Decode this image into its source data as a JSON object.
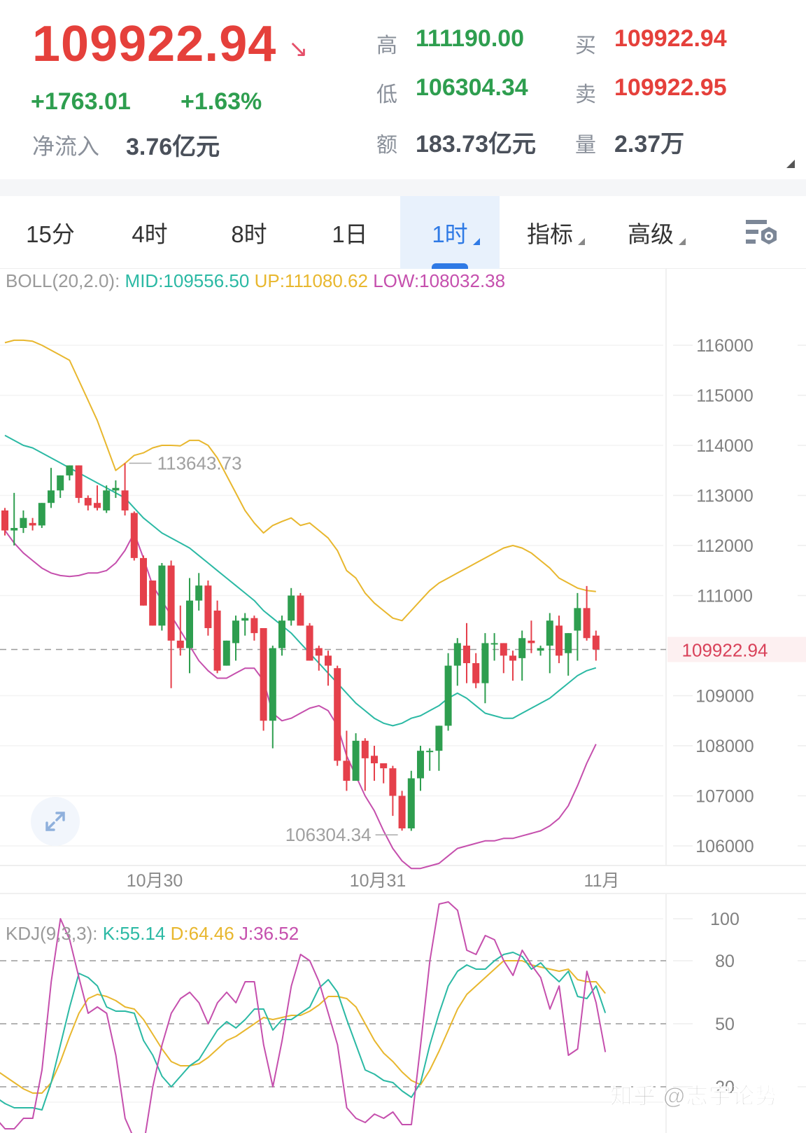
{
  "quote": {
    "last_price": "109922.94",
    "direction_icon": "arrow-down-right",
    "change_abs": "+1763.01",
    "change_pct": "+1.63%",
    "net_inflow_label": "净流入",
    "net_inflow_value": "3.76亿元"
  },
  "stats": {
    "high_label": "高",
    "high_value": "111190.00",
    "low_label": "低",
    "low_value": "106304.34",
    "amount_label": "额",
    "amount_value": "183.73亿元",
    "bid_label": "买",
    "bid_value": "109922.94",
    "ask_label": "卖",
    "ask_value": "109922.95",
    "volume_label": "量",
    "volume_value": "2.37万"
  },
  "tabs": [
    {
      "label": "15分",
      "active": false
    },
    {
      "label": "4时",
      "active": false
    },
    {
      "label": "8时",
      "active": false
    },
    {
      "label": "1日",
      "active": false
    },
    {
      "label": "1时",
      "active": true,
      "dropdown": true
    },
    {
      "label": "指标",
      "active": false,
      "dropdown": true
    },
    {
      "label": "高级",
      "active": false,
      "dropdown": true
    }
  ],
  "settings_icon": "chart-settings-icon",
  "boll_legend": {
    "name": "BOLL(20,2.0):",
    "mid": "MID:109556.50",
    "up": "UP:111080.62",
    "low": "LOW:108032.38"
  },
  "kdj_legend": {
    "name": "KDJ(9,3,3):",
    "k": "K:55.14",
    "d": "D:64.46",
    "j": "J:36.52"
  },
  "watermark": "知乎 @志宇论势",
  "colors": {
    "up": "#2e9e4f",
    "down": "#e5404b",
    "mid": "#2bb9a4",
    "upper": "#e8b72e",
    "lower": "#c54fad",
    "price_line": "#d9425a"
  },
  "chart_data": [
    {
      "type": "candlestick",
      "title": "BTC 1H K-line with BOLL(20,2.0)",
      "interval": "1时",
      "xlabel": "",
      "ylabel": "",
      "ylim": [
        105600,
        117300
      ],
      "y_ticks": [
        116000,
        115000,
        114000,
        113000,
        112000,
        111000,
        109000,
        108000,
        107000,
        106000
      ],
      "x_tick_labels": [
        {
          "label": "10月30",
          "index": 16
        },
        {
          "label": "10月31",
          "index": 40
        },
        {
          "label": "11月",
          "index": 65
        }
      ],
      "current_price_label": "109922.94",
      "annotations": [
        {
          "text": "113643.73",
          "type": "max",
          "index": 13
        },
        {
          "text": "106304.34",
          "type": "min",
          "index": 43
        }
      ],
      "candles": [
        [
          112700,
          112750,
          112200,
          112300
        ],
        [
          112300,
          113050,
          112000,
          112350
        ],
        [
          112350,
          112700,
          112250,
          112550
        ],
        [
          112450,
          112550,
          112300,
          112400
        ],
        [
          112400,
          112850,
          112350,
          112850
        ],
        [
          112850,
          113550,
          112750,
          113100
        ],
        [
          113100,
          113400,
          112950,
          113400
        ],
        [
          113400,
          113600,
          113300,
          113600
        ],
        [
          113600,
          113600,
          112850,
          112950
        ],
        [
          112950,
          113000,
          112700,
          112800
        ],
        [
          112850,
          113200,
          112700,
          112750
        ],
        [
          112700,
          113200,
          112650,
          113100
        ],
        [
          113100,
          113300,
          112950,
          113150
        ],
        [
          113100,
          113643.73,
          112600,
          112700
        ],
        [
          112650,
          112680,
          111700,
          111750
        ],
        [
          111750,
          111800,
          110800,
          110800
        ],
        [
          111300,
          111300,
          110400,
          110400
        ],
        [
          110400,
          111650,
          110300,
          111600
        ],
        [
          111600,
          111700,
          109150,
          110100
        ],
        [
          110100,
          110800,
          109800,
          109950
        ],
        [
          109950,
          111350,
          109450,
          110900
        ],
        [
          110900,
          111450,
          110700,
          111200
        ],
        [
          111200,
          111300,
          110200,
          110350
        ],
        [
          110700,
          110900,
          109450,
          109500
        ],
        [
          109600,
          110100,
          109600,
          110100
        ],
        [
          110050,
          110600,
          109700,
          110500
        ],
        [
          110500,
          110650,
          110200,
          110550
        ],
        [
          110550,
          110600,
          110100,
          110250
        ],
        [
          110350,
          110350,
          108300,
          108500
        ],
        [
          108500,
          110000,
          107950,
          109950
        ],
        [
          109950,
          110600,
          109800,
          110500
        ],
        [
          110500,
          111150,
          110400,
          111000
        ],
        [
          111000,
          111050,
          110400,
          110400
        ],
        [
          110400,
          110450,
          109700,
          109700
        ],
        [
          109950,
          110000,
          109500,
          109800
        ],
        [
          109800,
          109900,
          109200,
          109600
        ],
        [
          109550,
          109600,
          107600,
          107700
        ],
        [
          107700,
          108300,
          107100,
          107300
        ],
        [
          107300,
          108250,
          107300,
          108100
        ],
        [
          108100,
          108150,
          107100,
          107750
        ],
        [
          107800,
          108000,
          107300,
          107650
        ],
        [
          107650,
          107550,
          107250,
          107550
        ],
        [
          107550,
          107600,
          106600,
          107000
        ],
        [
          107000,
          107100,
          106304.34,
          106350
        ],
        [
          106350,
          107500,
          106300,
          107350
        ],
        [
          107350,
          108000,
          107100,
          107900
        ],
        [
          107900,
          107950,
          107500,
          107900
        ],
        [
          107900,
          108400,
          107500,
          108400
        ],
        [
          108400,
          109850,
          108300,
          109600
        ],
        [
          109600,
          110150,
          109200,
          110050
        ],
        [
          110000,
          110450,
          109250,
          109650
        ],
        [
          109650,
          109850,
          109150,
          109250
        ],
        [
          109250,
          110250,
          108850,
          110050
        ],
        [
          110050,
          110250,
          109700,
          110050
        ],
        [
          110050,
          110050,
          109450,
          109800
        ],
        [
          109800,
          109900,
          109300,
          109700
        ],
        [
          109750,
          110300,
          109300,
          110150
        ],
        [
          110100,
          110500,
          109850,
          110050
        ],
        [
          109900,
          110000,
          109800,
          109950
        ],
        [
          110000,
          110650,
          109450,
          110500
        ],
        [
          110400,
          110600,
          109650,
          109800
        ],
        [
          109850,
          110250,
          109400,
          110250
        ],
        [
          110300,
          111050,
          109700,
          110750
        ],
        [
          110750,
          111190,
          110100,
          110150
        ],
        [
          110200,
          110300,
          109700,
          109922.94
        ]
      ],
      "boll": {
        "upper": [
          116050,
          116100,
          116100,
          116080,
          116000,
          115900,
          115800,
          115700,
          115300,
          114900,
          114500,
          114000,
          113500,
          113640,
          113800,
          113850,
          113950,
          114000,
          114000,
          113990,
          114100,
          114100,
          114000,
          113750,
          113400,
          113050,
          112700,
          112450,
          112250,
          112400,
          112480,
          112550,
          112400,
          112450,
          112300,
          112150,
          111900,
          111500,
          111350,
          111050,
          110850,
          110700,
          110550,
          110500,
          110700,
          110900,
          111100,
          111250,
          111350,
          111450,
          111550,
          111650,
          111750,
          111850,
          111950,
          112000,
          111950,
          111850,
          111700,
          111550,
          111350,
          111250,
          111150,
          111100,
          111080.62
        ],
        "mid": [
          114200,
          114100,
          114000,
          113950,
          113850,
          113750,
          113650,
          113550,
          113450,
          113350,
          113250,
          113150,
          113050,
          112950,
          112750,
          112550,
          112400,
          112250,
          112150,
          112050,
          111950,
          111800,
          111650,
          111500,
          111350,
          111200,
          111050,
          110900,
          110700,
          110550,
          110400,
          110250,
          110050,
          109850,
          109650,
          109450,
          109250,
          109050,
          108850,
          108700,
          108550,
          108450,
          108400,
          108450,
          108550,
          108600,
          108700,
          108800,
          108950,
          109050,
          108950,
          108800,
          108650,
          108600,
          108550,
          108550,
          108650,
          108750,
          108850,
          108950,
          109100,
          109250,
          109400,
          109500,
          109556.5
        ],
        "lower": [
          112300,
          112050,
          111850,
          111700,
          111550,
          111450,
          111400,
          111380,
          111400,
          111450,
          111450,
          111500,
          111650,
          111900,
          112250,
          111750,
          111200,
          110900,
          110600,
          110300,
          110000,
          109700,
          109500,
          109350,
          109350,
          109450,
          109550,
          109550,
          109300,
          108650,
          108500,
          108550,
          108650,
          108750,
          108800,
          108700,
          108400,
          107800,
          107400,
          107000,
          106700,
          106300,
          105950,
          105700,
          105550,
          105550,
          105600,
          105650,
          105800,
          105950,
          106000,
          106050,
          106100,
          106100,
          106150,
          106150,
          106200,
          106250,
          106300,
          106400,
          106550,
          106800,
          107200,
          107650,
          108032.38
        ]
      }
    },
    {
      "type": "line",
      "title": "KDJ(9,3,3)",
      "ylim": [
        -5,
        120
      ],
      "y_ticks": [
        100,
        80,
        50,
        20
      ],
      "dashed_levels": [
        80,
        50,
        20
      ],
      "series": [
        {
          "name": "K",
          "values": [
            15,
            12,
            10,
            10,
            10,
            9,
            22,
            40,
            58,
            74,
            72,
            68,
            58,
            56,
            56,
            55,
            42,
            35,
            25,
            20,
            25,
            30,
            33,
            40,
            47,
            51,
            48,
            52,
            57,
            57,
            47,
            52,
            52,
            55,
            58,
            67,
            71,
            65,
            52,
            40,
            28,
            26,
            23,
            22,
            18,
            15,
            22,
            40,
            55,
            68,
            75,
            78,
            76,
            76,
            80,
            83,
            84,
            82,
            76,
            79,
            74,
            70,
            75,
            63,
            62,
            68,
            55.14
          ]
        },
        {
          "name": "D",
          "values": [
            28,
            25,
            22,
            19,
            17,
            17,
            22,
            32,
            44,
            55,
            62,
            64,
            63,
            61,
            58,
            57,
            52,
            45,
            38,
            32,
            30,
            30,
            31,
            34,
            38,
            42,
            44,
            47,
            50,
            53,
            52,
            53,
            54,
            54,
            56,
            59,
            63,
            63,
            62,
            58,
            50,
            42,
            36,
            32,
            27,
            23,
            21,
            28,
            37,
            47,
            57,
            64,
            68,
            72,
            76,
            80,
            80,
            80,
            78,
            77,
            76,
            75,
            76,
            71,
            70,
            70,
            64.46
          ]
        },
        {
          "name": "J",
          "values": [
            5,
            0,
            0,
            5,
            5,
            28,
            70,
            100,
            90,
            72,
            55,
            58,
            55,
            35,
            5,
            -5,
            -8,
            20,
            40,
            55,
            62,
            65,
            60,
            50,
            60,
            65,
            60,
            70,
            70,
            40,
            20,
            42,
            68,
            83,
            80,
            70,
            55,
            40,
            10,
            5,
            3,
            7,
            5,
            8,
            2,
            2,
            40,
            80,
            107,
            108,
            104,
            85,
            83,
            92,
            90,
            80,
            73,
            85,
            78,
            72,
            57,
            68,
            35,
            38,
            75,
            60,
            36.52
          ]
        }
      ]
    }
  ]
}
